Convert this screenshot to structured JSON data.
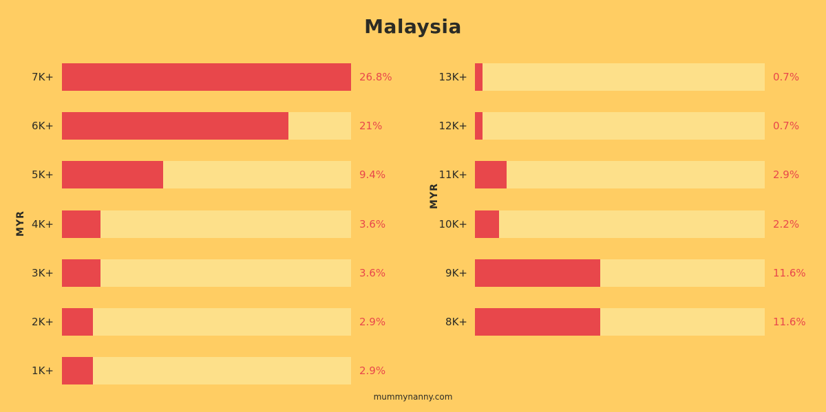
{
  "chart_data": [
    {
      "type": "bar",
      "orientation": "horizontal",
      "title": "Malaysia",
      "ylabel": "MYR",
      "categories": [
        "7K+",
        "6K+",
        "5K+",
        "4K+",
        "3K+",
        "2K+",
        "1K+"
      ],
      "values": [
        26.8,
        21,
        9.4,
        3.6,
        3.6,
        2.9,
        2.9
      ],
      "value_labels": [
        "26.8%",
        "21%",
        "9.4%",
        "3.6%",
        "3.6%",
        "2.9%",
        "2.9%"
      ],
      "xlim": [
        0,
        26.8
      ]
    },
    {
      "type": "bar",
      "orientation": "horizontal",
      "ylabel": "MYR",
      "categories": [
        "13K+",
        "12K+",
        "11K+",
        "10K+",
        "9K+",
        "8K+"
      ],
      "values": [
        0.7,
        0.7,
        2.9,
        2.2,
        11.6,
        11.6
      ],
      "value_labels": [
        "0.7%",
        "0.7%",
        "2.9%",
        "2.2%",
        "11.6%",
        "11.6%"
      ],
      "xlim": [
        0,
        26.8
      ]
    }
  ],
  "title": "Malaysia",
  "source": "mummynanny.com",
  "colors": {
    "background": "#ffcd63",
    "track": "#fde08a",
    "bar": "#e8474b",
    "text": "#2b2b25"
  }
}
